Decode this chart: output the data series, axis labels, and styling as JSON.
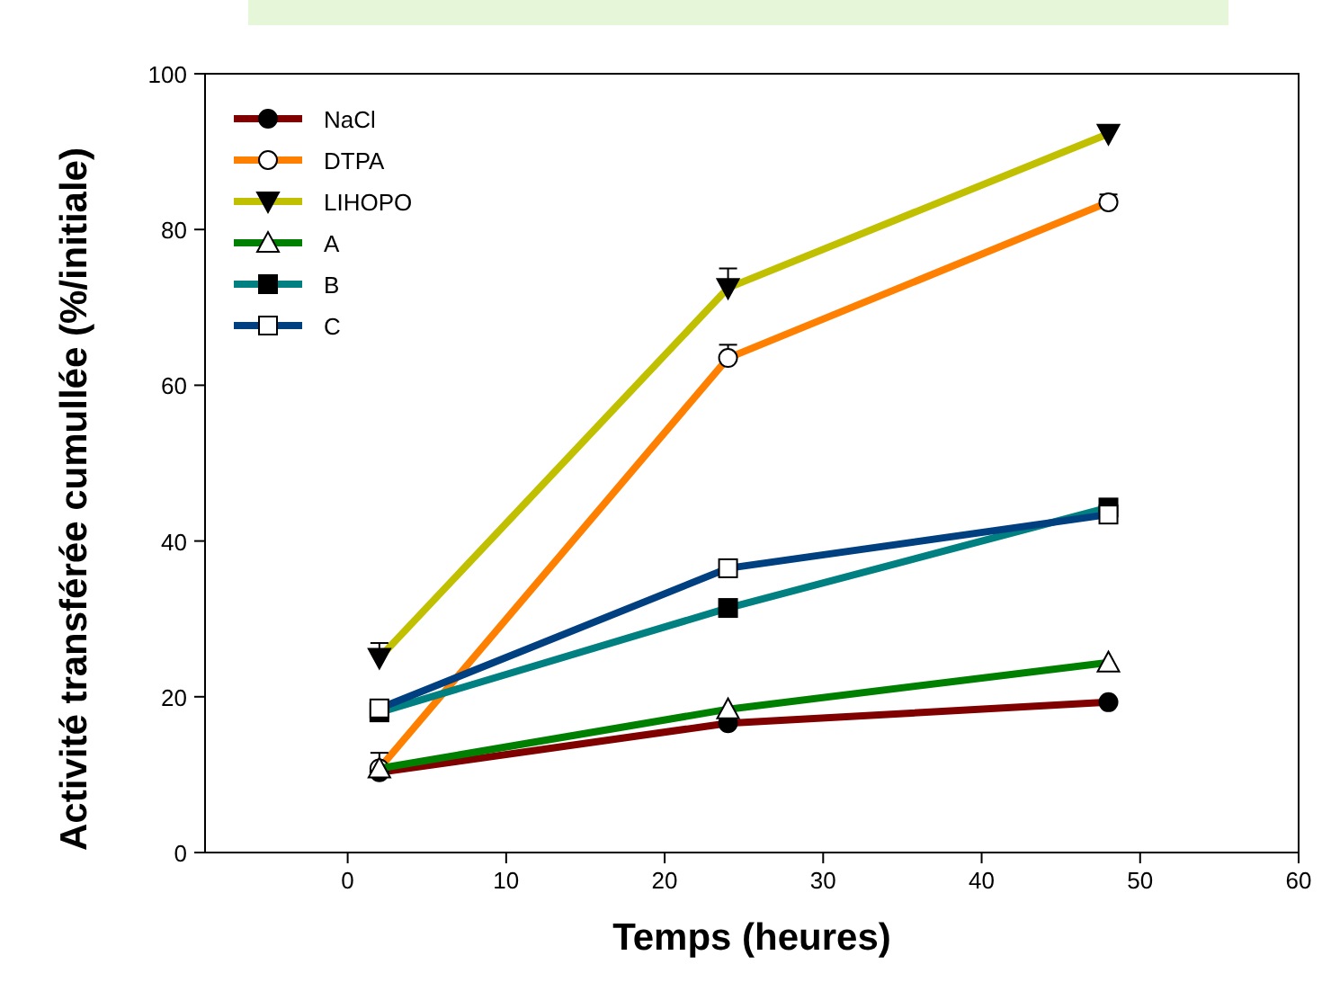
{
  "chart_data": {
    "type": "line",
    "xlabel": "Temps (heures)",
    "ylabel": "Activité transférée cumullée (%/initiale)",
    "x": [
      2,
      24,
      48
    ],
    "xlim": [
      -9,
      60
    ],
    "xticks": [
      0,
      10,
      20,
      30,
      40,
      50,
      60
    ],
    "ylim": [
      0,
      100
    ],
    "yticks": [
      0,
      20,
      40,
      60,
      80,
      100
    ],
    "legend": "top left",
    "grid": false,
    "series": [
      {
        "name": "NaCl",
        "color": "#800000",
        "marker": "circle",
        "values": [
          10.3,
          16.6,
          19.3
        ]
      },
      {
        "name": "DTPA",
        "color": "#ff8000",
        "marker": "circle",
        "values": [
          10.8,
          63.5,
          83.5
        ],
        "errors": [
          [
            10.8,
            12.8
          ],
          [
            63.5,
            65.2
          ],
          [
            83.5,
            84.5
          ]
        ]
      },
      {
        "name": "LIHOPO",
        "color": "#c0c000",
        "marker": "triangle",
        "values": [
          25,
          72.5,
          92.3
        ],
        "errors": [
          [
            25,
            26.9
          ],
          [
            72.5,
            75
          ],
          null
        ]
      },
      {
        "name": "A",
        "color": "#008000",
        "marker": "triangle",
        "values": [
          10.8,
          18.4,
          24.4
        ]
      },
      {
        "name": "B",
        "color": "#008080",
        "marker": "square",
        "values": [
          18,
          31.4,
          44.3
        ]
      },
      {
        "name": "C",
        "color": "#004080",
        "marker": "square",
        "values": [
          18.5,
          36.5,
          43.4
        ]
      }
    ]
  }
}
